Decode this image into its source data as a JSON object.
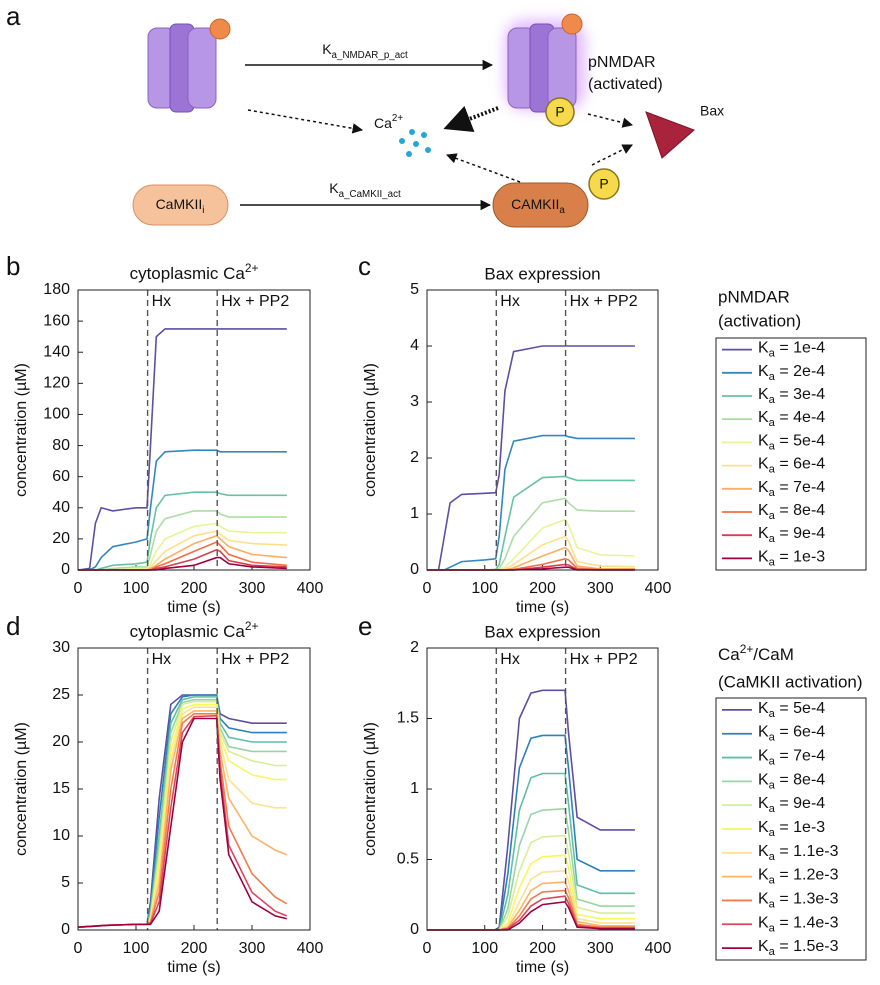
{
  "diagram": {
    "panel_label": "a",
    "pnmdar_label": [
      "pNMDAR",
      "(activated)"
    ],
    "ca_label": "Ca2+",
    "bax_label": "Bax",
    "camkii_i": "CaMKIIi",
    "camkii_a": "CAMKIIa",
    "phospho": [
      "P",
      "P"
    ],
    "edges": [
      {
        "label": "Ka_NMDAR_p_act"
      },
      {
        "label": "Ka_CaMKII_act"
      }
    ]
  },
  "chart_data": [
    {
      "type": "line",
      "panel_label": "b",
      "title": "cytoplasmic Ca2+",
      "xlabel": "time (s)",
      "ylabel": "concentration (µM)",
      "xlim": [
        0,
        400
      ],
      "xticks": [
        0,
        100,
        200,
        300,
        400
      ],
      "ylim": [
        0,
        180
      ],
      "yticks": [
        0,
        20,
        40,
        60,
        80,
        100,
        120,
        140,
        160,
        180
      ],
      "annotations": [
        {
          "text": "Hx",
          "x": 120
        },
        {
          "text": "Hx + PP2",
          "x": 240
        }
      ],
      "x": [
        0,
        20,
        30,
        40,
        60,
        100,
        119,
        125,
        135,
        150,
        200,
        239,
        245,
        260,
        300,
        360
      ],
      "series": [
        {
          "color": "#5e4fa2",
          "values": [
            0,
            1,
            30,
            40,
            38,
            40,
            40,
            80,
            150,
            155,
            155,
            155,
            155,
            155,
            155,
            155
          ]
        },
        {
          "color": "#3288bd",
          "values": [
            0,
            0,
            2,
            8,
            15,
            18,
            20,
            40,
            70,
            76,
            77,
            77,
            76,
            76,
            76,
            76
          ]
        },
        {
          "color": "#66c2a5",
          "values": [
            0,
            0,
            0,
            1,
            3,
            4,
            5,
            20,
            40,
            48,
            50,
            50,
            49,
            48,
            48,
            48
          ]
        },
        {
          "color": "#abdda4",
          "values": [
            0,
            0,
            0,
            0,
            1,
            2,
            2,
            10,
            25,
            33,
            38,
            38,
            36,
            34,
            34,
            34
          ]
        },
        {
          "color": "#e6f598",
          "values": [
            0,
            0,
            0,
            0,
            0,
            1,
            1,
            4,
            12,
            20,
            28,
            30,
            28,
            25,
            24,
            24
          ]
        },
        {
          "color": "#fee08b",
          "values": [
            0,
            0,
            0,
            0,
            0,
            0,
            0,
            2,
            6,
            12,
            22,
            25,
            23,
            19,
            17,
            16
          ]
        },
        {
          "color": "#fdae61",
          "values": [
            0,
            0,
            0,
            0,
            0,
            0,
            0,
            1,
            3,
            7,
            17,
            22,
            20,
            15,
            10,
            8
          ]
        },
        {
          "color": "#f46d43",
          "values": [
            0,
            0,
            0,
            0,
            0,
            0,
            0,
            0,
            2,
            4,
            12,
            18,
            16,
            10,
            5,
            3
          ]
        },
        {
          "color": "#d53e4f",
          "values": [
            0,
            0,
            0,
            0,
            0,
            0,
            0,
            0,
            1,
            2,
            7,
            13,
            12,
            6,
            3,
            2
          ]
        },
        {
          "color": "#9e0142",
          "values": [
            0,
            0,
            0,
            0,
            0,
            0,
            0,
            0,
            0,
            1,
            3,
            8,
            8,
            4,
            2,
            1
          ]
        }
      ]
    },
    {
      "type": "line",
      "panel_label": "c",
      "title": "Bax expression",
      "xlabel": "time (s)",
      "ylabel": "concentration (µM)",
      "xlim": [
        0,
        400
      ],
      "xticks": [
        0,
        100,
        200,
        300,
        400
      ],
      "ylim": [
        0,
        5
      ],
      "yticks": [
        0,
        1,
        2,
        3,
        4,
        5
      ],
      "annotations": [
        {
          "text": "Hx",
          "x": 120
        },
        {
          "text": "Hx + PP2",
          "x": 240
        }
      ],
      "legend_title": [
        "pNMDAR",
        "(activation)"
      ],
      "x": [
        0,
        20,
        30,
        40,
        60,
        100,
        119,
        125,
        135,
        150,
        200,
        239,
        245,
        260,
        300,
        360
      ],
      "series": [
        {
          "name": "Ka = 1e-4",
          "color": "#5e4fa2",
          "values": [
            0,
            0,
            0.6,
            1.2,
            1.35,
            1.37,
            1.38,
            1.7,
            3.2,
            3.9,
            4,
            4,
            4,
            4,
            4,
            4
          ]
        },
        {
          "name": "Ka = 2e-4",
          "color": "#3288bd",
          "values": [
            0,
            0,
            0,
            0.05,
            0.15,
            0.18,
            0.2,
            0.6,
            1.8,
            2.3,
            2.4,
            2.4,
            2.38,
            2.35,
            2.35,
            2.35
          ]
        },
        {
          "name": "Ka = 3e-4",
          "color": "#66c2a5",
          "values": [
            0,
            0,
            0,
            0,
            0,
            0,
            0.01,
            0.1,
            0.6,
            1.3,
            1.65,
            1.67,
            1.65,
            1.6,
            1.6,
            1.6
          ]
        },
        {
          "name": "Ka = 4e-4",
          "color": "#abdda4",
          "values": [
            0,
            0,
            0,
            0,
            0,
            0,
            0,
            0.03,
            0.2,
            0.6,
            1.2,
            1.28,
            1.2,
            1.07,
            1.05,
            1.05
          ]
        },
        {
          "name": "Ka = 5e-4",
          "color": "#e6f598",
          "values": [
            0,
            0,
            0,
            0,
            0,
            0,
            0,
            0,
            0.05,
            0.2,
            0.75,
            0.9,
            0.8,
            0.4,
            0.27,
            0.25
          ]
        },
        {
          "name": "Ka = 6e-4",
          "color": "#fee08b",
          "values": [
            0,
            0,
            0,
            0,
            0,
            0,
            0,
            0,
            0.02,
            0.1,
            0.45,
            0.6,
            0.52,
            0.15,
            0.07,
            0.06
          ]
        },
        {
          "name": "Ka = 7e-4",
          "color": "#fdae61",
          "values": [
            0,
            0,
            0,
            0,
            0,
            0,
            0,
            0,
            0,
            0.04,
            0.25,
            0.4,
            0.35,
            0.07,
            0.02,
            0.02
          ]
        },
        {
          "name": "Ka = 8e-4",
          "color": "#f46d43",
          "values": [
            0,
            0,
            0,
            0,
            0,
            0,
            0,
            0,
            0,
            0.01,
            0.1,
            0.2,
            0.18,
            0.03,
            0.01,
            0.01
          ]
        },
        {
          "name": "Ka = 9e-4",
          "color": "#d53e4f",
          "values": [
            0,
            0,
            0,
            0,
            0,
            0,
            0,
            0,
            0,
            0,
            0.05,
            0.1,
            0.09,
            0.01,
            0,
            0
          ]
        },
        {
          "name": "Ka = 1e-3",
          "color": "#9e0142",
          "values": [
            0,
            0,
            0,
            0,
            0,
            0,
            0,
            0,
            0,
            0,
            0.02,
            0.05,
            0.05,
            0,
            0,
            0
          ]
        }
      ]
    },
    {
      "type": "line",
      "panel_label": "d",
      "title": "cytoplasmic Ca2+",
      "xlabel": "time (s)",
      "ylabel": "concentration (µM)",
      "xlim": [
        0,
        400
      ],
      "xticks": [
        0,
        100,
        200,
        300,
        400
      ],
      "ylim": [
        0,
        30
      ],
      "yticks": [
        0,
        5,
        10,
        15,
        20,
        25,
        30
      ],
      "annotations": [
        {
          "text": "Hx",
          "x": 120
        },
        {
          "text": "Hx + PP2",
          "x": 240
        }
      ],
      "x": [
        0,
        50,
        100,
        119,
        125,
        140,
        160,
        180,
        200,
        239,
        245,
        260,
        300,
        340,
        360
      ],
      "series": [
        {
          "color": "#5e4fa2",
          "values": [
            0.3,
            0.5,
            0.6,
            0.6,
            3,
            14,
            24,
            25,
            25,
            25,
            23,
            22.5,
            22,
            22,
            22
          ]
        },
        {
          "color": "#2f7fbc",
          "values": [
            0.3,
            0.5,
            0.6,
            0.6,
            2.5,
            12,
            23,
            24.8,
            25,
            25,
            22.5,
            21.5,
            21,
            21,
            21
          ]
        },
        {
          "color": "#5fbfa3",
          "values": [
            0.3,
            0.5,
            0.6,
            0.6,
            2,
            10,
            22,
            24.5,
            24.8,
            24.8,
            22,
            20.5,
            20,
            20,
            20
          ]
        },
        {
          "color": "#99d5a4",
          "values": [
            0.3,
            0.5,
            0.6,
            0.6,
            1.5,
            9,
            21,
            24.2,
            24.5,
            24.5,
            21.5,
            19.5,
            19,
            19,
            19
          ]
        },
        {
          "color": "#d6ee9b",
          "values": [
            0.3,
            0.5,
            0.6,
            0.6,
            1.3,
            8,
            20,
            24,
            24.3,
            24.3,
            21,
            19,
            18,
            17.5,
            17.5
          ]
        },
        {
          "color": "#f7f760",
          "values": [
            0.3,
            0.5,
            0.6,
            0.6,
            1.2,
            7,
            19,
            23.5,
            24,
            24,
            20.5,
            18,
            16.5,
            16,
            16
          ]
        },
        {
          "color": "#fde28f",
          "values": [
            0.3,
            0.5,
            0.6,
            0.6,
            1,
            6,
            18,
            23,
            23.7,
            23.7,
            20,
            16,
            13.5,
            13,
            13
          ]
        },
        {
          "color": "#fdb466",
          "values": [
            0.3,
            0.5,
            0.6,
            0.6,
            0.9,
            5,
            17,
            22.5,
            23.3,
            23.3,
            19,
            14,
            10,
            8.5,
            8
          ]
        },
        {
          "color": "#f47b4b",
          "values": [
            0.3,
            0.5,
            0.6,
            0.6,
            0.8,
            4,
            15,
            22,
            23,
            23,
            18,
            11,
            6,
            3.5,
            2.8
          ]
        },
        {
          "color": "#d8475a",
          "values": [
            0.3,
            0.5,
            0.6,
            0.6,
            0.7,
            3,
            13,
            21,
            22.7,
            22.8,
            17,
            9,
            4,
            2,
            1.5
          ]
        },
        {
          "color": "#9e0142",
          "values": [
            0.3,
            0.5,
            0.6,
            0.6,
            0.6,
            2,
            11,
            20,
            22.5,
            22.5,
            16,
            8,
            3,
            1.5,
            1.2
          ]
        }
      ]
    },
    {
      "type": "line",
      "panel_label": "e",
      "title": "Bax expression",
      "xlabel": "time (s)",
      "ylabel": "concentration (µM)",
      "xlim": [
        0,
        400
      ],
      "xticks": [
        0,
        100,
        200,
        300,
        400
      ],
      "ylim": [
        0,
        2
      ],
      "yticks": [
        0,
        0.5,
        1,
        1.5,
        2
      ],
      "annotations": [
        {
          "text": "Hx",
          "x": 120
        },
        {
          "text": "Hx + PP2",
          "x": 240
        }
      ],
      "legend_title": [
        "Ca2+/CaM",
        "(CaMKII activation)"
      ],
      "x": [
        0,
        50,
        100,
        119,
        125,
        140,
        160,
        180,
        200,
        239,
        245,
        260,
        300,
        340,
        360
      ],
      "series": [
        {
          "name": "Ka = 5e-4",
          "color": "#5e4fa2",
          "values": [
            0,
            0,
            0,
            0,
            0.02,
            0.6,
            1.5,
            1.68,
            1.7,
            1.7,
            1.4,
            0.8,
            0.71,
            0.71,
            0.71
          ]
        },
        {
          "name": "Ka = 6e-4",
          "color": "#2f7fbc",
          "values": [
            0,
            0,
            0,
            0,
            0.01,
            0.4,
            1.15,
            1.36,
            1.38,
            1.38,
            1.15,
            0.5,
            0.42,
            0.42,
            0.42
          ]
        },
        {
          "name": "Ka = 7e-4",
          "color": "#5fbfa3",
          "values": [
            0,
            0,
            0,
            0,
            0,
            0.25,
            0.85,
            1.08,
            1.11,
            1.11,
            0.9,
            0.32,
            0.26,
            0.26,
            0.26
          ]
        },
        {
          "name": "Ka = 8e-4",
          "color": "#99d5a4",
          "values": [
            0,
            0,
            0,
            0,
            0,
            0.15,
            0.6,
            0.82,
            0.85,
            0.86,
            0.7,
            0.22,
            0.17,
            0.17,
            0.17
          ]
        },
        {
          "name": "Ka = 9e-4",
          "color": "#d6ee9b",
          "values": [
            0,
            0,
            0,
            0,
            0,
            0.1,
            0.42,
            0.62,
            0.66,
            0.67,
            0.55,
            0.16,
            0.12,
            0.12,
            0.12
          ]
        },
        {
          "name": "Ka = 1e-3",
          "color": "#f7f760",
          "values": [
            0,
            0,
            0,
            0,
            0,
            0.05,
            0.3,
            0.47,
            0.52,
            0.53,
            0.44,
            0.11,
            0.08,
            0.08,
            0.08
          ]
        },
        {
          "name": "Ka = 1.1e-3",
          "color": "#fde28f",
          "values": [
            0,
            0,
            0,
            0,
            0,
            0.03,
            0.2,
            0.36,
            0.41,
            0.42,
            0.35,
            0.08,
            0.05,
            0.05,
            0.05
          ]
        },
        {
          "name": "Ka = 1.2e-3",
          "color": "#fdb466",
          "values": [
            0,
            0,
            0,
            0,
            0,
            0.02,
            0.14,
            0.28,
            0.33,
            0.34,
            0.28,
            0.06,
            0.03,
            0.03,
            0.03
          ]
        },
        {
          "name": "Ka = 1.3e-3",
          "color": "#f47b4b",
          "values": [
            0,
            0,
            0,
            0,
            0,
            0.01,
            0.1,
            0.22,
            0.27,
            0.28,
            0.23,
            0.04,
            0.02,
            0.02,
            0.02
          ]
        },
        {
          "name": "Ka = 1.4e-3",
          "color": "#d8475a",
          "values": [
            0,
            0,
            0,
            0,
            0,
            0.01,
            0.07,
            0.17,
            0.22,
            0.24,
            0.19,
            0.03,
            0.01,
            0.01,
            0.01
          ]
        },
        {
          "name": "Ka = 1.5e-3",
          "color": "#9e0142",
          "values": [
            0,
            0,
            0,
            0,
            0,
            0,
            0.05,
            0.13,
            0.18,
            0.2,
            0.16,
            0.02,
            0.01,
            0.01,
            0.01
          ]
        }
      ]
    }
  ]
}
